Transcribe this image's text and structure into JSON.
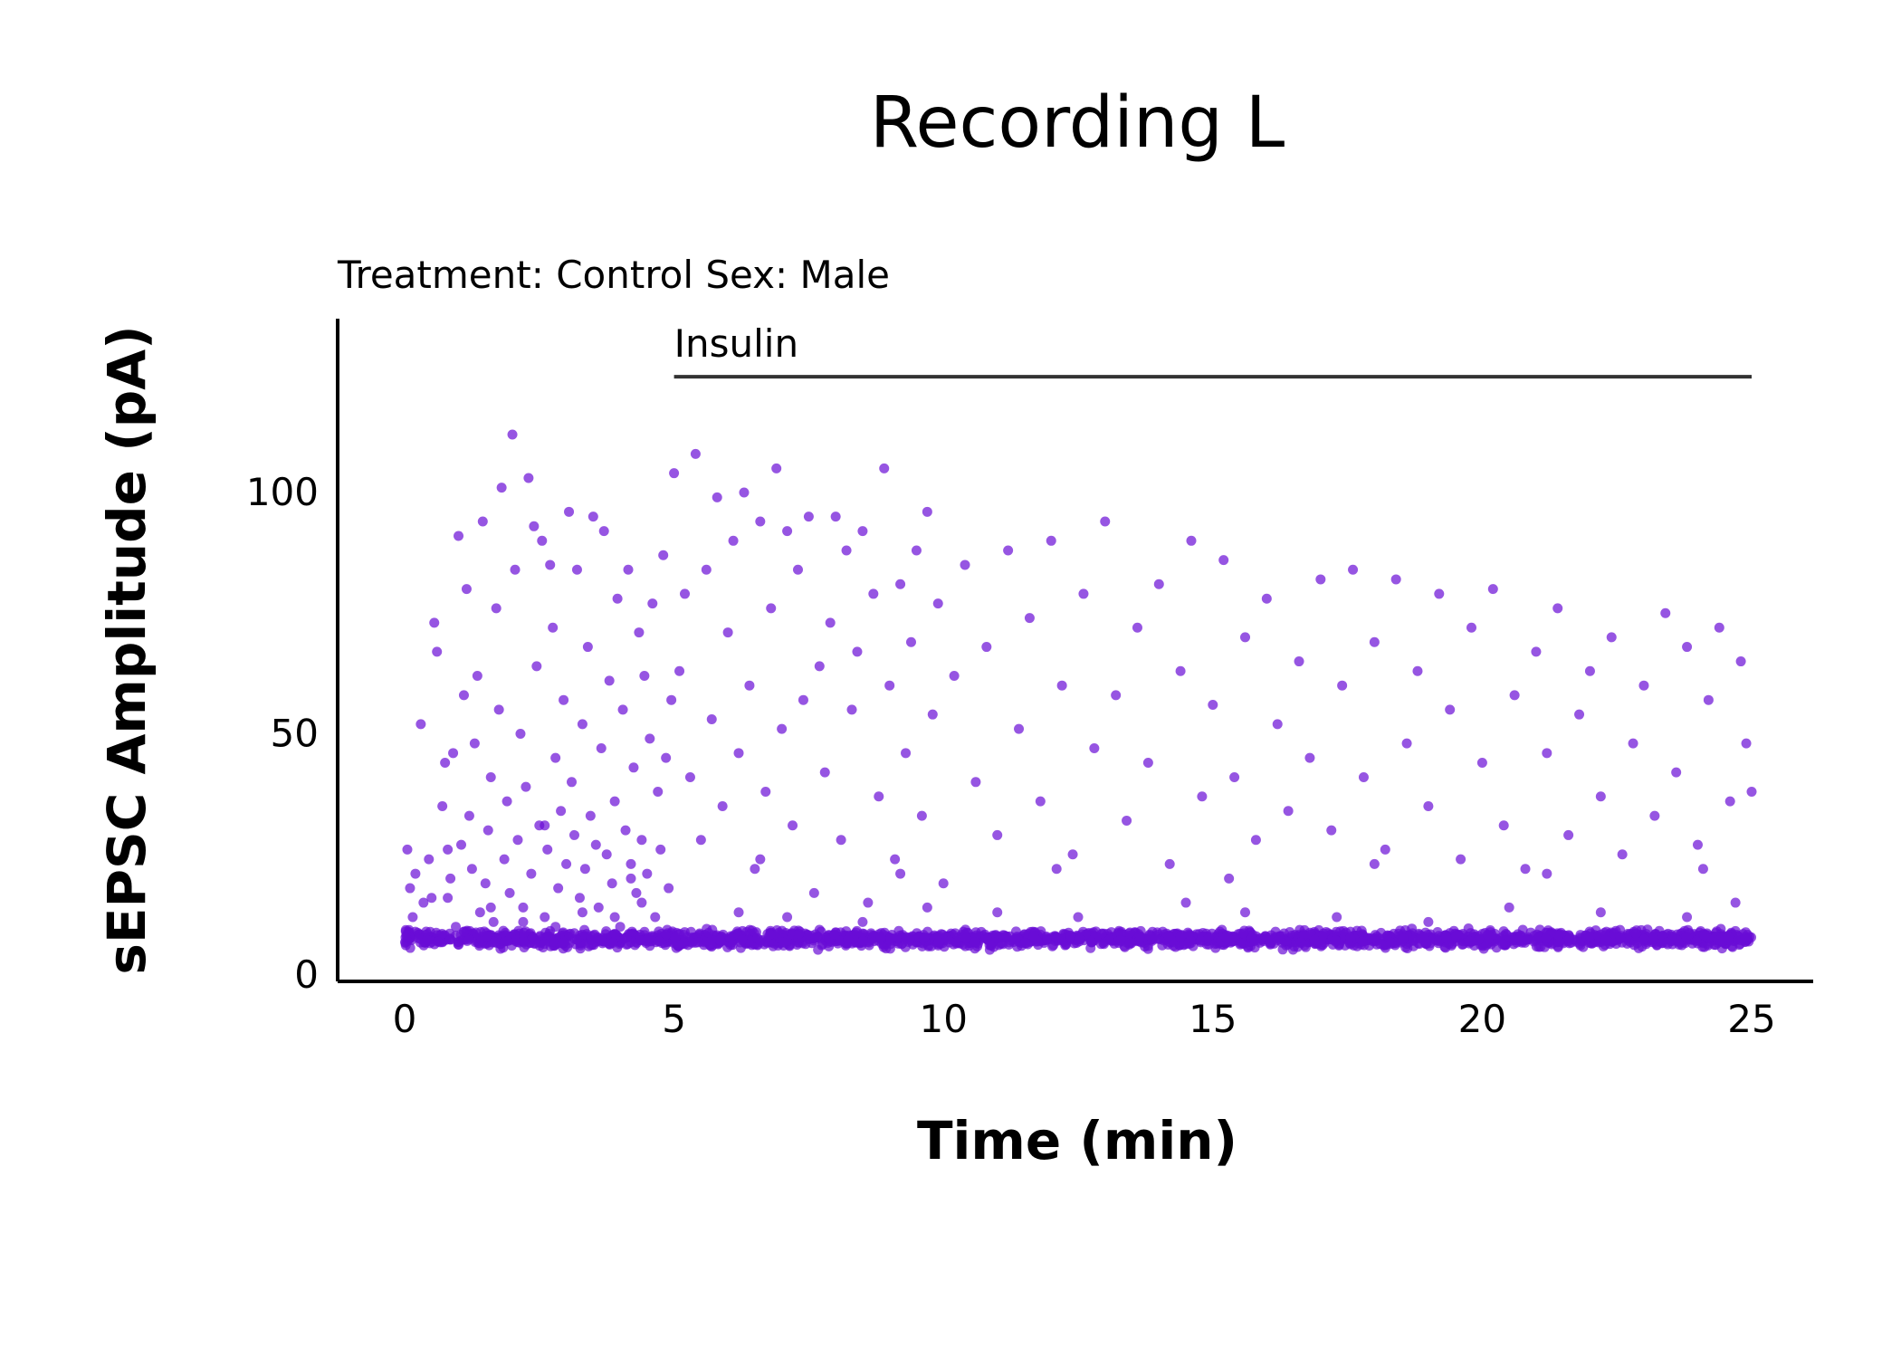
{
  "chart_data": {
    "type": "scatter",
    "title": "Recording L",
    "subtitle": "Treatment: Control  Sex: Male",
    "xlabel": "Time (min)",
    "ylabel": "sEPSC Amplitude (pA)",
    "xlim": [
      -1.2,
      26.2
    ],
    "ylim": [
      0,
      135
    ],
    "xticks": [
      0,
      5,
      10,
      15,
      20,
      25
    ],
    "yticks": [
      0,
      50,
      100
    ],
    "grid": false,
    "legend": "none",
    "point_color": "#6A0DD6",
    "point_opacity": 0.7,
    "annotation": {
      "label": "Insulin",
      "x_start": 5,
      "x_end": 25,
      "y": 124
    },
    "baseline_band": {
      "center": 7.5,
      "spread": 1.6,
      "density_per_min": 90,
      "x_range": [
        0,
        25
      ]
    },
    "points": [
      [
        0.05,
        26
      ],
      [
        0.1,
        18
      ],
      [
        0.15,
        12
      ],
      [
        0.2,
        21
      ],
      [
        0.3,
        52
      ],
      [
        0.35,
        15
      ],
      [
        0.4,
        9
      ],
      [
        0.45,
        24
      ],
      [
        0.55,
        73
      ],
      [
        0.6,
        67
      ],
      [
        0.7,
        35
      ],
      [
        0.75,
        44
      ],
      [
        0.8,
        16
      ],
      [
        0.85,
        20
      ],
      [
        0.9,
        46
      ],
      [
        0.95,
        10
      ],
      [
        1.0,
        91
      ],
      [
        1.05,
        27
      ],
      [
        1.1,
        58
      ],
      [
        1.15,
        80
      ],
      [
        1.2,
        33
      ],
      [
        1.25,
        22
      ],
      [
        1.3,
        48
      ],
      [
        1.35,
        62
      ],
      [
        1.4,
        13
      ],
      [
        1.45,
        94
      ],
      [
        1.5,
        19
      ],
      [
        1.55,
        30
      ],
      [
        1.6,
        41
      ],
      [
        1.65,
        11
      ],
      [
        1.7,
        76
      ],
      [
        1.75,
        55
      ],
      [
        1.8,
        101
      ],
      [
        1.85,
        24
      ],
      [
        1.9,
        36
      ],
      [
        1.95,
        17
      ],
      [
        2.0,
        112
      ],
      [
        2.05,
        84
      ],
      [
        2.1,
        28
      ],
      [
        2.15,
        50
      ],
      [
        2.2,
        14
      ],
      [
        2.25,
        39
      ],
      [
        2.3,
        103
      ],
      [
        2.35,
        21
      ],
      [
        2.4,
        93
      ],
      [
        2.45,
        64
      ],
      [
        2.5,
        31
      ],
      [
        2.55,
        90
      ],
      [
        2.6,
        12
      ],
      [
        2.65,
        26
      ],
      [
        2.7,
        85
      ],
      [
        2.75,
        72
      ],
      [
        2.8,
        45
      ],
      [
        2.85,
        18
      ],
      [
        2.9,
        34
      ],
      [
        2.95,
        57
      ],
      [
        3.0,
        23
      ],
      [
        3.05,
        96
      ],
      [
        3.1,
        40
      ],
      [
        3.15,
        29
      ],
      [
        3.2,
        84
      ],
      [
        3.25,
        16
      ],
      [
        3.3,
        52
      ],
      [
        3.35,
        22
      ],
      [
        3.4,
        68
      ],
      [
        3.45,
        33
      ],
      [
        3.5,
        95
      ],
      [
        3.55,
        27
      ],
      [
        3.6,
        14
      ],
      [
        3.65,
        47
      ],
      [
        3.7,
        92
      ],
      [
        3.75,
        25
      ],
      [
        3.8,
        61
      ],
      [
        3.85,
        19
      ],
      [
        3.9,
        36
      ],
      [
        3.95,
        78
      ],
      [
        4.0,
        10
      ],
      [
        4.05,
        55
      ],
      [
        4.1,
        30
      ],
      [
        4.15,
        84
      ],
      [
        4.2,
        23
      ],
      [
        4.25,
        43
      ],
      [
        4.3,
        17
      ],
      [
        4.35,
        71
      ],
      [
        4.4,
        28
      ],
      [
        4.45,
        62
      ],
      [
        4.5,
        21
      ],
      [
        4.55,
        49
      ],
      [
        4.6,
        77
      ],
      [
        4.65,
        12
      ],
      [
        4.7,
        38
      ],
      [
        4.75,
        26
      ],
      [
        4.8,
        87
      ],
      [
        4.85,
        45
      ],
      [
        4.9,
        18
      ],
      [
        4.95,
        57
      ],
      [
        5.0,
        104
      ],
      [
        5.1,
        63
      ],
      [
        5.2,
        79
      ],
      [
        5.3,
        41
      ],
      [
        5.4,
        108
      ],
      [
        5.5,
        28
      ],
      [
        5.6,
        84
      ],
      [
        5.7,
        53
      ],
      [
        5.8,
        99
      ],
      [
        5.9,
        35
      ],
      [
        6.0,
        71
      ],
      [
        6.1,
        90
      ],
      [
        6.2,
        46
      ],
      [
        6.3,
        100
      ],
      [
        6.4,
        60
      ],
      [
        6.5,
        22
      ],
      [
        6.6,
        94
      ],
      [
        6.7,
        38
      ],
      [
        6.8,
        76
      ],
      [
        6.9,
        105
      ],
      [
        7.0,
        51
      ],
      [
        7.1,
        92
      ],
      [
        7.2,
        31
      ],
      [
        7.3,
        84
      ],
      [
        7.4,
        57
      ],
      [
        7.5,
        95
      ],
      [
        7.6,
        17
      ],
      [
        7.7,
        64
      ],
      [
        7.8,
        42
      ],
      [
        7.9,
        73
      ],
      [
        8.0,
        95
      ],
      [
        8.1,
        28
      ],
      [
        8.2,
        88
      ],
      [
        8.3,
        55
      ],
      [
        8.4,
        67
      ],
      [
        8.5,
        92
      ],
      [
        8.6,
        15
      ],
      [
        8.7,
        79
      ],
      [
        8.8,
        37
      ],
      [
        8.9,
        105
      ],
      [
        9.0,
        60
      ],
      [
        9.1,
        24
      ],
      [
        9.2,
        81
      ],
      [
        9.3,
        46
      ],
      [
        9.4,
        69
      ],
      [
        9.5,
        88
      ],
      [
        9.6,
        33
      ],
      [
        9.7,
        96
      ],
      [
        9.8,
        54
      ],
      [
        9.9,
        77
      ],
      [
        10.0,
        19
      ],
      [
        10.2,
        62
      ],
      [
        10.4,
        85
      ],
      [
        10.6,
        40
      ],
      [
        10.8,
        68
      ],
      [
        11.0,
        29
      ],
      [
        11.2,
        88
      ],
      [
        11.4,
        51
      ],
      [
        11.6,
        74
      ],
      [
        11.8,
        36
      ],
      [
        12.0,
        90
      ],
      [
        12.2,
        60
      ],
      [
        12.4,
        25
      ],
      [
        12.6,
        79
      ],
      [
        12.8,
        47
      ],
      [
        13.0,
        94
      ],
      [
        13.2,
        58
      ],
      [
        13.4,
        32
      ],
      [
        13.6,
        72
      ],
      [
        13.8,
        44
      ],
      [
        14.0,
        81
      ],
      [
        14.2,
        23
      ],
      [
        14.4,
        63
      ],
      [
        14.6,
        90
      ],
      [
        14.8,
        37
      ],
      [
        15.0,
        56
      ],
      [
        15.2,
        86
      ],
      [
        15.4,
        41
      ],
      [
        15.6,
        70
      ],
      [
        15.8,
        28
      ],
      [
        16.0,
        78
      ],
      [
        16.2,
        52
      ],
      [
        16.4,
        34
      ],
      [
        16.6,
        65
      ],
      [
        16.8,
        45
      ],
      [
        17.0,
        82
      ],
      [
        17.2,
        30
      ],
      [
        17.4,
        60
      ],
      [
        17.6,
        84
      ],
      [
        17.8,
        41
      ],
      [
        18.0,
        69
      ],
      [
        18.2,
        26
      ],
      [
        18.4,
        82
      ],
      [
        18.6,
        48
      ],
      [
        18.8,
        63
      ],
      [
        19.0,
        35
      ],
      [
        19.2,
        79
      ],
      [
        19.4,
        55
      ],
      [
        19.6,
        24
      ],
      [
        19.8,
        72
      ],
      [
        20.0,
        44
      ],
      [
        20.2,
        80
      ],
      [
        20.4,
        31
      ],
      [
        20.6,
        58
      ],
      [
        20.8,
        22
      ],
      [
        21.0,
        67
      ],
      [
        21.2,
        46
      ],
      [
        21.4,
        76
      ],
      [
        21.6,
        29
      ],
      [
        21.8,
        54
      ],
      [
        22.0,
        63
      ],
      [
        22.2,
        37
      ],
      [
        22.4,
        70
      ],
      [
        22.6,
        25
      ],
      [
        22.8,
        48
      ],
      [
        23.0,
        60
      ],
      [
        23.2,
        33
      ],
      [
        23.4,
        75
      ],
      [
        23.6,
        42
      ],
      [
        23.8,
        68
      ],
      [
        24.0,
        27
      ],
      [
        24.2,
        57
      ],
      [
        24.4,
        72
      ],
      [
        24.6,
        36
      ],
      [
        24.8,
        65
      ],
      [
        24.9,
        48
      ],
      [
        25.0,
        38
      ],
      [
        0.5,
        16
      ],
      [
        1.1,
        9
      ],
      [
        1.6,
        14
      ],
      [
        2.2,
        11
      ],
      [
        2.8,
        10
      ],
      [
        3.3,
        13
      ],
      [
        3.9,
        12
      ],
      [
        4.4,
        15
      ],
      [
        6.2,
        13
      ],
      [
        7.1,
        12
      ],
      [
        8.5,
        11
      ],
      [
        9.7,
        14
      ],
      [
        11.0,
        13
      ],
      [
        12.5,
        12
      ],
      [
        14.5,
        15
      ],
      [
        15.6,
        13
      ],
      [
        17.3,
        12
      ],
      [
        19.0,
        11
      ],
      [
        20.5,
        14
      ],
      [
        22.2,
        13
      ],
      [
        23.8,
        12
      ],
      [
        24.7,
        15
      ],
      [
        0.8,
        26
      ],
      [
        2.6,
        31
      ],
      [
        4.2,
        20
      ],
      [
        6.6,
        24
      ],
      [
        9.2,
        21
      ],
      [
        12.1,
        22
      ],
      [
        15.3,
        20
      ],
      [
        18.0,
        23
      ],
      [
        21.2,
        21
      ],
      [
        24.1,
        22
      ]
    ]
  }
}
